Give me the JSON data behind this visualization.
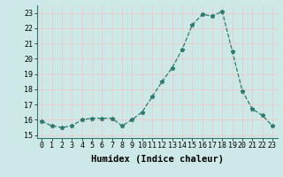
{
  "x": [
    0,
    1,
    2,
    3,
    4,
    5,
    6,
    7,
    8,
    9,
    10,
    11,
    12,
    13,
    14,
    15,
    16,
    17,
    18,
    19,
    20,
    21,
    22,
    23
  ],
  "y": [
    15.9,
    15.6,
    15.5,
    15.6,
    16.0,
    16.1,
    16.1,
    16.1,
    15.6,
    16.0,
    16.5,
    17.5,
    18.5,
    19.4,
    20.6,
    22.2,
    22.9,
    22.8,
    23.1,
    20.5,
    17.9,
    16.7,
    16.3,
    15.6
  ],
  "line_color": "#2d7a6e",
  "marker": "*",
  "marker_size": 3.5,
  "bg_color": "#cce9e7",
  "grid_color": "#f0c8c8",
  "xlabel": "Humidex (Indice chaleur)",
  "ylim": [
    14.8,
    23.5
  ],
  "xlim": [
    -0.5,
    23.5
  ],
  "yticks": [
    15,
    16,
    17,
    18,
    19,
    20,
    21,
    22,
    23
  ],
  "xticks": [
    0,
    1,
    2,
    3,
    4,
    5,
    6,
    7,
    8,
    9,
    10,
    11,
    12,
    13,
    14,
    15,
    16,
    17,
    18,
    19,
    20,
    21,
    22,
    23
  ],
  "tick_fontsize": 6,
  "xlabel_fontsize": 7.5
}
